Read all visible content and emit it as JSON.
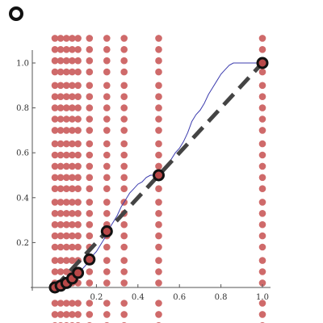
{
  "indicator": {
    "icon": "ring-icon"
  },
  "colors": {
    "dots": "#cf6a6a",
    "highlight_fill": "#b84848",
    "highlight_ring": "#111111",
    "dashed_line": "#444444",
    "curve": "#3c3cae",
    "axis": "#555555"
  },
  "chart_data": {
    "type": "scatter",
    "title": "",
    "xlabel": "",
    "ylabel": "",
    "xlim": [
      0,
      1.0
    ],
    "ylim": [
      0,
      1.0
    ],
    "x_ticks": [
      {
        "value": 0.2,
        "label": "0.2"
      },
      {
        "value": 0.4,
        "label": "0.4"
      },
      {
        "value": 0.6,
        "label": "0.6"
      },
      {
        "value": 0.8,
        "label": "0.8"
      },
      {
        "value": 1.0,
        "label": "1.0"
      }
    ],
    "y_ticks": [
      {
        "value": 0.2,
        "label": "0.2"
      },
      {
        "value": 0.4,
        "label": "0.4"
      },
      {
        "value": 0.6,
        "label": "0.6"
      },
      {
        "value": 0.8,
        "label": "0.8"
      },
      {
        "value": 1.0,
        "label": "1.0"
      }
    ],
    "dot_columns_x": [
      0.0,
      0.0278,
      0.0556,
      0.0833,
      0.1111,
      0.1667,
      0.25,
      0.3333,
      0.5,
      1.0
    ],
    "dot_rows_y": [
      -0.17,
      -0.12,
      -0.07,
      0.02,
      0.07,
      0.12,
      0.18,
      0.23,
      0.28,
      0.33,
      0.38,
      0.44,
      0.49,
      0.54,
      0.59,
      0.64,
      0.7,
      0.75,
      0.8,
      0.85,
      0.9,
      0.96,
      1.01,
      1.06,
      1.11
    ],
    "highlighted_points": [
      {
        "x": 0.0,
        "y": 0.0
      },
      {
        "x": 0.0278,
        "y": 0.008
      },
      {
        "x": 0.0556,
        "y": 0.02
      },
      {
        "x": 0.0833,
        "y": 0.04
      },
      {
        "x": 0.1111,
        "y": 0.065
      },
      {
        "x": 0.1667,
        "y": 0.125
      },
      {
        "x": 0.25,
        "y": 0.25
      },
      {
        "x": 0.5,
        "y": 0.5
      },
      {
        "x": 1.0,
        "y": 1.0
      }
    ],
    "dashed_line": [
      [
        0.0,
        0.0
      ],
      [
        1.0,
        1.0
      ]
    ],
    "curve": [
      [
        0.0,
        0.0
      ],
      [
        0.03,
        0.01
      ],
      [
        0.06,
        0.02
      ],
      [
        0.09,
        0.04
      ],
      [
        0.12,
        0.07
      ],
      [
        0.15,
        0.1
      ],
      [
        0.18,
        0.14
      ],
      [
        0.2,
        0.16
      ],
      [
        0.22,
        0.19
      ],
      [
        0.24,
        0.22
      ],
      [
        0.26,
        0.26
      ],
      [
        0.28,
        0.29
      ],
      [
        0.3,
        0.32
      ],
      [
        0.32,
        0.36
      ],
      [
        0.34,
        0.39
      ],
      [
        0.36,
        0.42
      ],
      [
        0.38,
        0.44
      ],
      [
        0.4,
        0.46
      ],
      [
        0.42,
        0.47
      ],
      [
        0.44,
        0.49
      ],
      [
        0.46,
        0.5
      ],
      [
        0.48,
        0.5
      ],
      [
        0.5,
        0.51
      ],
      [
        0.52,
        0.52
      ],
      [
        0.54,
        0.54
      ],
      [
        0.56,
        0.57
      ],
      [
        0.58,
        0.6
      ],
      [
        0.6,
        0.62
      ],
      [
        0.62,
        0.65
      ],
      [
        0.64,
        0.69
      ],
      [
        0.66,
        0.74
      ],
      [
        0.68,
        0.77
      ],
      [
        0.7,
        0.79
      ],
      [
        0.72,
        0.82
      ],
      [
        0.74,
        0.86
      ],
      [
        0.76,
        0.89
      ],
      [
        0.78,
        0.92
      ],
      [
        0.8,
        0.95
      ],
      [
        0.82,
        0.97
      ],
      [
        0.84,
        0.99
      ],
      [
        0.86,
        1.0
      ],
      [
        0.9,
        1.0
      ],
      [
        0.95,
        1.0
      ],
      [
        1.0,
        1.0
      ]
    ]
  }
}
